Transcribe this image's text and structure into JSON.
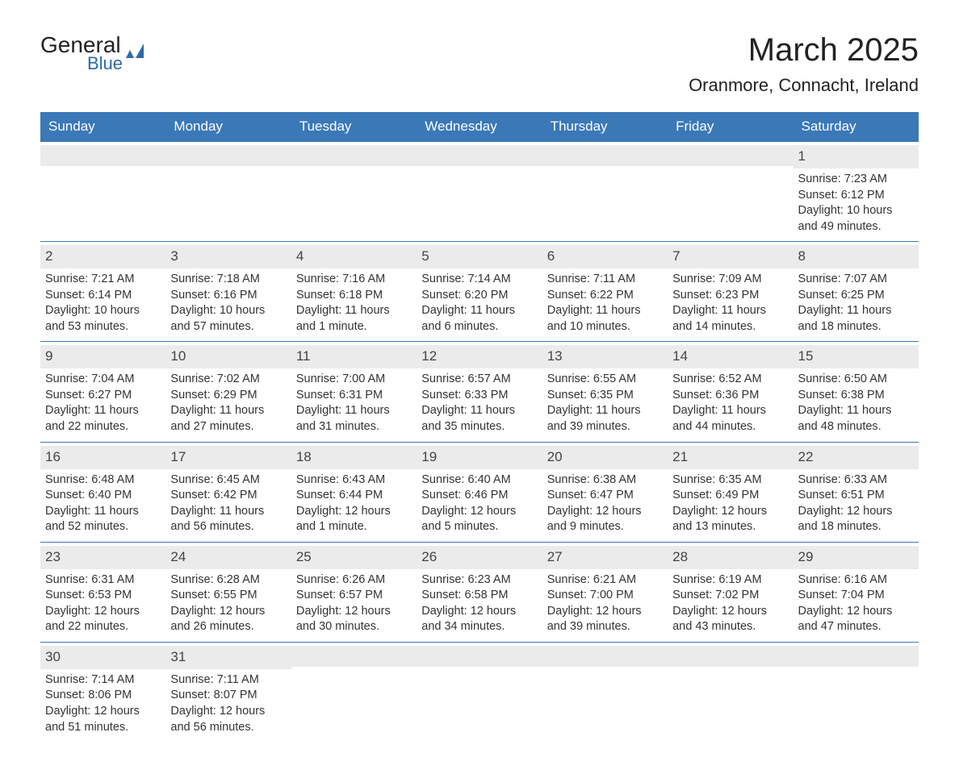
{
  "logo": {
    "text1": "General",
    "text2": "Blue"
  },
  "title": "March 2025",
  "subtitle": "Oranmore, Connacht, Ireland",
  "weekdays": [
    "Sunday",
    "Monday",
    "Tuesday",
    "Wednesday",
    "Thursday",
    "Friday",
    "Saturday"
  ],
  "colors": {
    "header_bg": "#3a78b7",
    "header_text": "#ffffff",
    "daynum_bg": "#ebebeb",
    "text": "#333333",
    "border": "#3a78b7"
  },
  "fontsizes": {
    "title": 40,
    "subtitle": 22,
    "weekday": 17,
    "daynum": 17,
    "body": 14.5
  },
  "weeks": [
    [
      {
        "num": "",
        "sunrise": "",
        "sunset": "",
        "daylight": ""
      },
      {
        "num": "",
        "sunrise": "",
        "sunset": "",
        "daylight": ""
      },
      {
        "num": "",
        "sunrise": "",
        "sunset": "",
        "daylight": ""
      },
      {
        "num": "",
        "sunrise": "",
        "sunset": "",
        "daylight": ""
      },
      {
        "num": "",
        "sunrise": "",
        "sunset": "",
        "daylight": ""
      },
      {
        "num": "",
        "sunrise": "",
        "sunset": "",
        "daylight": ""
      },
      {
        "num": "1",
        "sunrise": "Sunrise: 7:23 AM",
        "sunset": "Sunset: 6:12 PM",
        "daylight": "Daylight: 10 hours and 49 minutes."
      }
    ],
    [
      {
        "num": "2",
        "sunrise": "Sunrise: 7:21 AM",
        "sunset": "Sunset: 6:14 PM",
        "daylight": "Daylight: 10 hours and 53 minutes."
      },
      {
        "num": "3",
        "sunrise": "Sunrise: 7:18 AM",
        "sunset": "Sunset: 6:16 PM",
        "daylight": "Daylight: 10 hours and 57 minutes."
      },
      {
        "num": "4",
        "sunrise": "Sunrise: 7:16 AM",
        "sunset": "Sunset: 6:18 PM",
        "daylight": "Daylight: 11 hours and 1 minute."
      },
      {
        "num": "5",
        "sunrise": "Sunrise: 7:14 AM",
        "sunset": "Sunset: 6:20 PM",
        "daylight": "Daylight: 11 hours and 6 minutes."
      },
      {
        "num": "6",
        "sunrise": "Sunrise: 7:11 AM",
        "sunset": "Sunset: 6:22 PM",
        "daylight": "Daylight: 11 hours and 10 minutes."
      },
      {
        "num": "7",
        "sunrise": "Sunrise: 7:09 AM",
        "sunset": "Sunset: 6:23 PM",
        "daylight": "Daylight: 11 hours and 14 minutes."
      },
      {
        "num": "8",
        "sunrise": "Sunrise: 7:07 AM",
        "sunset": "Sunset: 6:25 PM",
        "daylight": "Daylight: 11 hours and 18 minutes."
      }
    ],
    [
      {
        "num": "9",
        "sunrise": "Sunrise: 7:04 AM",
        "sunset": "Sunset: 6:27 PM",
        "daylight": "Daylight: 11 hours and 22 minutes."
      },
      {
        "num": "10",
        "sunrise": "Sunrise: 7:02 AM",
        "sunset": "Sunset: 6:29 PM",
        "daylight": "Daylight: 11 hours and 27 minutes."
      },
      {
        "num": "11",
        "sunrise": "Sunrise: 7:00 AM",
        "sunset": "Sunset: 6:31 PM",
        "daylight": "Daylight: 11 hours and 31 minutes."
      },
      {
        "num": "12",
        "sunrise": "Sunrise: 6:57 AM",
        "sunset": "Sunset: 6:33 PM",
        "daylight": "Daylight: 11 hours and 35 minutes."
      },
      {
        "num": "13",
        "sunrise": "Sunrise: 6:55 AM",
        "sunset": "Sunset: 6:35 PM",
        "daylight": "Daylight: 11 hours and 39 minutes."
      },
      {
        "num": "14",
        "sunrise": "Sunrise: 6:52 AM",
        "sunset": "Sunset: 6:36 PM",
        "daylight": "Daylight: 11 hours and 44 minutes."
      },
      {
        "num": "15",
        "sunrise": "Sunrise: 6:50 AM",
        "sunset": "Sunset: 6:38 PM",
        "daylight": "Daylight: 11 hours and 48 minutes."
      }
    ],
    [
      {
        "num": "16",
        "sunrise": "Sunrise: 6:48 AM",
        "sunset": "Sunset: 6:40 PM",
        "daylight": "Daylight: 11 hours and 52 minutes."
      },
      {
        "num": "17",
        "sunrise": "Sunrise: 6:45 AM",
        "sunset": "Sunset: 6:42 PM",
        "daylight": "Daylight: 11 hours and 56 minutes."
      },
      {
        "num": "18",
        "sunrise": "Sunrise: 6:43 AM",
        "sunset": "Sunset: 6:44 PM",
        "daylight": "Daylight: 12 hours and 1 minute."
      },
      {
        "num": "19",
        "sunrise": "Sunrise: 6:40 AM",
        "sunset": "Sunset: 6:46 PM",
        "daylight": "Daylight: 12 hours and 5 minutes."
      },
      {
        "num": "20",
        "sunrise": "Sunrise: 6:38 AM",
        "sunset": "Sunset: 6:47 PM",
        "daylight": "Daylight: 12 hours and 9 minutes."
      },
      {
        "num": "21",
        "sunrise": "Sunrise: 6:35 AM",
        "sunset": "Sunset: 6:49 PM",
        "daylight": "Daylight: 12 hours and 13 minutes."
      },
      {
        "num": "22",
        "sunrise": "Sunrise: 6:33 AM",
        "sunset": "Sunset: 6:51 PM",
        "daylight": "Daylight: 12 hours and 18 minutes."
      }
    ],
    [
      {
        "num": "23",
        "sunrise": "Sunrise: 6:31 AM",
        "sunset": "Sunset: 6:53 PM",
        "daylight": "Daylight: 12 hours and 22 minutes."
      },
      {
        "num": "24",
        "sunrise": "Sunrise: 6:28 AM",
        "sunset": "Sunset: 6:55 PM",
        "daylight": "Daylight: 12 hours and 26 minutes."
      },
      {
        "num": "25",
        "sunrise": "Sunrise: 6:26 AM",
        "sunset": "Sunset: 6:57 PM",
        "daylight": "Daylight: 12 hours and 30 minutes."
      },
      {
        "num": "26",
        "sunrise": "Sunrise: 6:23 AM",
        "sunset": "Sunset: 6:58 PM",
        "daylight": "Daylight: 12 hours and 34 minutes."
      },
      {
        "num": "27",
        "sunrise": "Sunrise: 6:21 AM",
        "sunset": "Sunset: 7:00 PM",
        "daylight": "Daylight: 12 hours and 39 minutes."
      },
      {
        "num": "28",
        "sunrise": "Sunrise: 6:19 AM",
        "sunset": "Sunset: 7:02 PM",
        "daylight": "Daylight: 12 hours and 43 minutes."
      },
      {
        "num": "29",
        "sunrise": "Sunrise: 6:16 AM",
        "sunset": "Sunset: 7:04 PM",
        "daylight": "Daylight: 12 hours and 47 minutes."
      }
    ],
    [
      {
        "num": "30",
        "sunrise": "Sunrise: 7:14 AM",
        "sunset": "Sunset: 8:06 PM",
        "daylight": "Daylight: 12 hours and 51 minutes."
      },
      {
        "num": "31",
        "sunrise": "Sunrise: 7:11 AM",
        "sunset": "Sunset: 8:07 PM",
        "daylight": "Daylight: 12 hours and 56 minutes."
      },
      {
        "num": "",
        "sunrise": "",
        "sunset": "",
        "daylight": ""
      },
      {
        "num": "",
        "sunrise": "",
        "sunset": "",
        "daylight": ""
      },
      {
        "num": "",
        "sunrise": "",
        "sunset": "",
        "daylight": ""
      },
      {
        "num": "",
        "sunrise": "",
        "sunset": "",
        "daylight": ""
      },
      {
        "num": "",
        "sunrise": "",
        "sunset": "",
        "daylight": ""
      }
    ]
  ]
}
